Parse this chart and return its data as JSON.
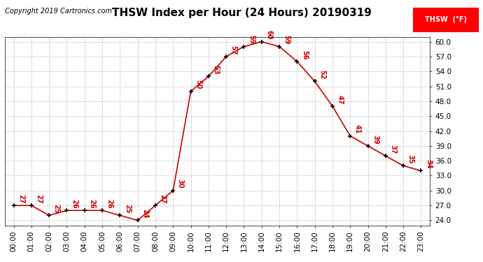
{
  "title": "THSW Index per Hour (24 Hours) 20190319",
  "copyright": "Copyright 2019 Cartronics.com",
  "legend_label": "THSW  (°F)",
  "hours": [
    0,
    1,
    2,
    3,
    4,
    5,
    6,
    7,
    8,
    9,
    10,
    11,
    12,
    13,
    14,
    15,
    16,
    17,
    18,
    19,
    20,
    21,
    22,
    23
  ],
  "values": [
    27,
    27,
    25,
    26,
    26,
    26,
    25,
    24,
    27,
    30,
    50,
    53,
    57,
    59,
    60,
    59,
    56,
    52,
    47,
    41,
    39,
    37,
    35,
    34
  ],
  "hour_labels": [
    "00:00",
    "01:00",
    "02:00",
    "03:00",
    "04:00",
    "05:00",
    "06:00",
    "07:00",
    "08:00",
    "09:00",
    "10:00",
    "11:00",
    "12:00",
    "13:00",
    "14:00",
    "15:00",
    "16:00",
    "17:00",
    "18:00",
    "19:00",
    "20:00",
    "21:00",
    "22:00",
    "23:00"
  ],
  "ylim": [
    23.0,
    61.0
  ],
  "yticks": [
    24.0,
    27.0,
    30.0,
    33.0,
    36.0,
    39.0,
    42.0,
    45.0,
    48.0,
    51.0,
    54.0,
    57.0,
    60.0
  ],
  "line_color": "#cc0000",
  "marker_color": "#000000",
  "bg_color": "#ffffff",
  "grid_color": "#bbbbbb",
  "title_fontsize": 11,
  "copyright_fontsize": 7,
  "label_fontsize": 7,
  "tick_fontsize": 7.5
}
